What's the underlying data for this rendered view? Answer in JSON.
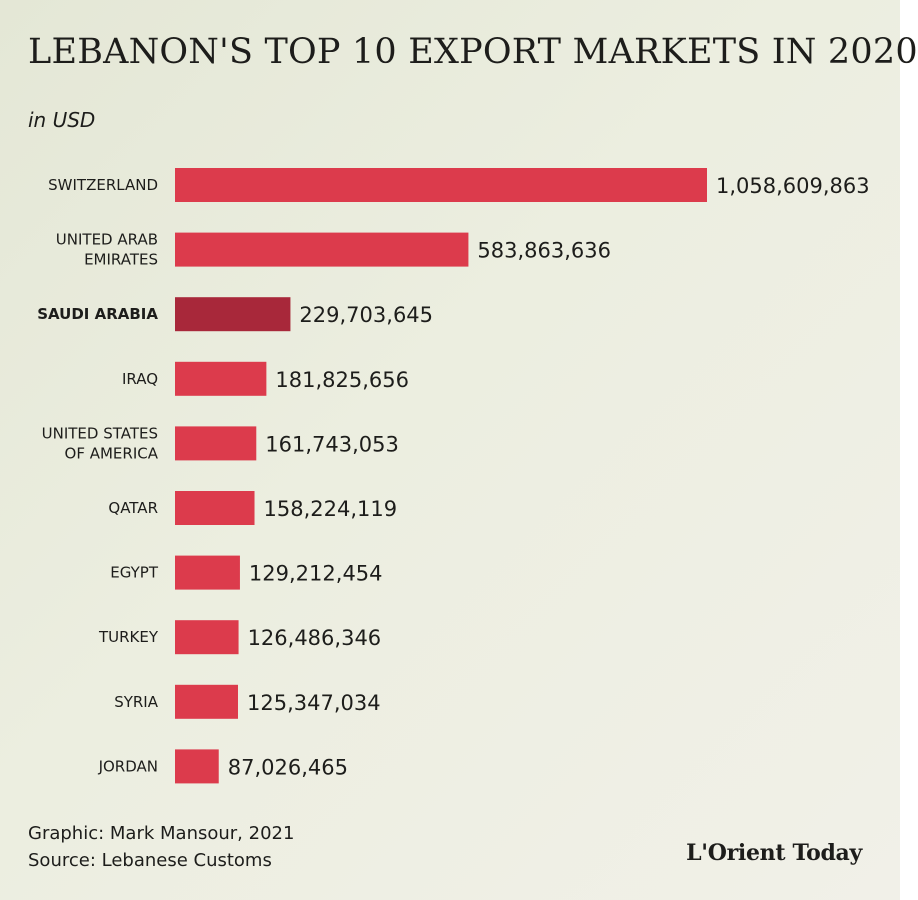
{
  "header": {
    "title": "LEBANON'S TOP 10 EXPORT MARKETS IN 2020",
    "subtitle": "in USD"
  },
  "chart_data": {
    "type": "bar",
    "orientation": "horizontal",
    "unit": "USD",
    "categories": [
      "SWITZERLAND",
      "UNITED ARAB EMIRATES",
      "SAUDI ARABIA",
      "IRAQ",
      "UNITED STATES OF AMERICA",
      "QATAR",
      "EGYPT",
      "TURKEY",
      "SYRIA",
      "JORDAN"
    ],
    "category_lines": [
      [
        "SWITZERLAND"
      ],
      [
        "UNITED ARAB",
        "EMIRATES"
      ],
      [
        "SAUDI ARABIA"
      ],
      [
        "IRAQ"
      ],
      [
        "UNITED STATES",
        "OF AMERICA"
      ],
      [
        "QATAR"
      ],
      [
        "EGYPT"
      ],
      [
        "TURKEY"
      ],
      [
        "SYRIA"
      ],
      [
        "JORDAN"
      ]
    ],
    "values": [
      1058609863,
      583863636,
      229703645,
      181825656,
      161743053,
      158224119,
      129212454,
      126486346,
      125347034,
      87026465
    ],
    "value_labels": [
      "1,058,609,863",
      "583,863,636",
      "229,703,645",
      "181,825,656",
      "161,743,053",
      "158,224,119",
      "129,212,454",
      "126,486,346",
      "125,347,034",
      "87,026,465"
    ],
    "highlighted_category": "SAUDI ARABIA",
    "xlim": [
      0,
      1058609863
    ],
    "axis_visible": false,
    "grid": false,
    "legend": "none"
  },
  "colors": {
    "bar": "#dc3b4c",
    "bar_highlight": "#a8283a",
    "text": "#1d1d1b"
  },
  "footer": {
    "credit_line": "Graphic: Mark Mansour, 2021",
    "source_line": "Source: Lebanese Customs",
    "logo_text": "L'Orient Today"
  }
}
